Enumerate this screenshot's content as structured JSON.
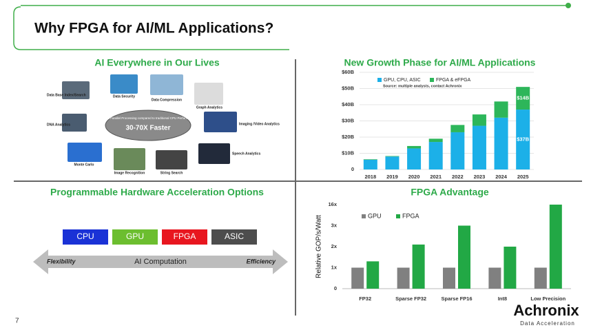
{
  "title": "Why FPGA for AI/ML Applications?",
  "page_number": "7",
  "logo": {
    "name": "Achronix",
    "tagline": "Data Acceleration"
  },
  "ai_everywhere": {
    "heading": "AI Everywhere in Our Lives",
    "center_note": "FPGA Parallel Processing compared to traditional CPU Performance",
    "center_value": "30-70X Faster",
    "items": [
      "Data Base Index/Search",
      "Data Security",
      "Data Compression",
      "Graph Analytics",
      "DNA Analytics",
      "Imaging /Video Analytics",
      "Speech Analytics",
      "Monte Carlo",
      "Image Recognition",
      "String Search"
    ]
  },
  "acceleration": {
    "heading": "Programmable Hardware Acceleration Options",
    "options": [
      "CPU",
      "GPU",
      "FPGA",
      "ASIC"
    ],
    "left": "Flexibility",
    "middle": "AI Computation",
    "right": "Efficiency"
  },
  "chart_data": [
    {
      "type": "bar",
      "stacked": true,
      "title": "New Growth Phase for AI/ML Applications",
      "subtitle": "Source: multiple analysts, contact Achronix",
      "categories": [
        "2018",
        "2019",
        "2020",
        "2021",
        "2022",
        "2023",
        "2024",
        "2025"
      ],
      "series": [
        {
          "name": "GPU, CPU, ASIC",
          "color": "#1cb0e8",
          "values": [
            6,
            8,
            13,
            17,
            23,
            27,
            32,
            37
          ],
          "value_labels": [
            null,
            null,
            null,
            null,
            null,
            null,
            null,
            "$37B"
          ]
        },
        {
          "name": "FPGA & eFPGA",
          "color": "#2db65a",
          "values": [
            0.3,
            0.3,
            1.5,
            2,
            4.5,
            7,
            10,
            14
          ],
          "value_labels": [
            null,
            null,
            null,
            null,
            null,
            null,
            null,
            "$14B"
          ]
        }
      ],
      "ylim": [
        0,
        60
      ],
      "yticks": [
        0,
        {
          "value": 10,
          "label": "$10B"
        },
        {
          "value": 20,
          "label": "$20B"
        },
        {
          "value": 30,
          "label": "$30B"
        },
        {
          "value": 40,
          "label": "$40B"
        },
        {
          "value": 50,
          "label": "$50B"
        },
        {
          "value": 60,
          "label": "$60B"
        }
      ],
      "grid": true
    },
    {
      "type": "bar",
      "stacked": false,
      "title": "FPGA Advantage",
      "y_label": "Relative GOP/s/Watt",
      "categories": [
        "FP32",
        "Sparse FP32",
        "Sparse FP16",
        "Int8",
        "Low Precision"
      ],
      "series": [
        {
          "name": "GPU",
          "color": "#808080",
          "values": [
            1,
            1,
            1,
            1,
            1
          ]
        },
        {
          "name": "FPGA",
          "color": "#22a845",
          "values": [
            1.3,
            2.1,
            3.0,
            2.0,
            16
          ]
        }
      ],
      "ylim": [
        0,
        16
      ],
      "yticks": [
        0,
        {
          "value": 1,
          "label": "1x"
        },
        {
          "value": 2,
          "label": "2x"
        },
        {
          "value": 3,
          "label": "3x"
        },
        {
          "value": 16,
          "label": "16x"
        }
      ],
      "grid": false
    }
  ]
}
